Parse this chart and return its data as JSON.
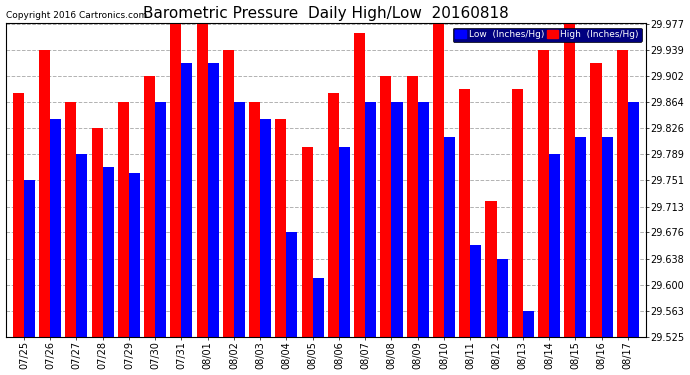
{
  "title": "Barometric Pressure  Daily High/Low  20160818",
  "copyright": "Copyright 2016 Cartronics.com",
  "legend_low": "Low  (Inches/Hg)",
  "legend_high": "High  (Inches/Hg)",
  "dates": [
    "07/25",
    "07/26",
    "07/27",
    "07/28",
    "07/29",
    "07/30",
    "07/31",
    "08/01",
    "08/02",
    "08/03",
    "08/04",
    "08/05",
    "08/06",
    "08/07",
    "08/08",
    "08/09",
    "08/10",
    "08/11",
    "08/12",
    "08/13",
    "08/14",
    "08/15",
    "08/16",
    "08/17"
  ],
  "low_values": [
    29.751,
    29.839,
    29.789,
    29.77,
    29.762,
    29.864,
    29.921,
    29.921,
    29.864,
    29.839,
    29.676,
    29.611,
    29.8,
    29.864,
    29.864,
    29.864,
    29.814,
    29.658,
    29.638,
    29.563,
    29.789,
    29.814,
    29.814,
    29.864
  ],
  "high_values": [
    29.877,
    29.939,
    29.864,
    29.826,
    29.864,
    29.902,
    29.977,
    29.977,
    29.939,
    29.864,
    29.839,
    29.8,
    29.877,
    29.964,
    29.902,
    29.902,
    29.977,
    29.883,
    29.721,
    29.883,
    29.939,
    29.977,
    29.92,
    29.939
  ],
  "ylim_min": 29.525,
  "ylim_max": 29.977,
  "yticks": [
    29.525,
    29.563,
    29.6,
    29.638,
    29.676,
    29.713,
    29.751,
    29.789,
    29.826,
    29.864,
    29.902,
    29.939,
    29.977
  ],
  "bar_width": 0.42,
  "low_color": "#0000ff",
  "high_color": "#ff0000",
  "bg_color": "#ffffff",
  "grid_color": "#aaaaaa",
  "title_fontsize": 11,
  "tick_fontsize": 7,
  "copyright_fontsize": 6.5
}
